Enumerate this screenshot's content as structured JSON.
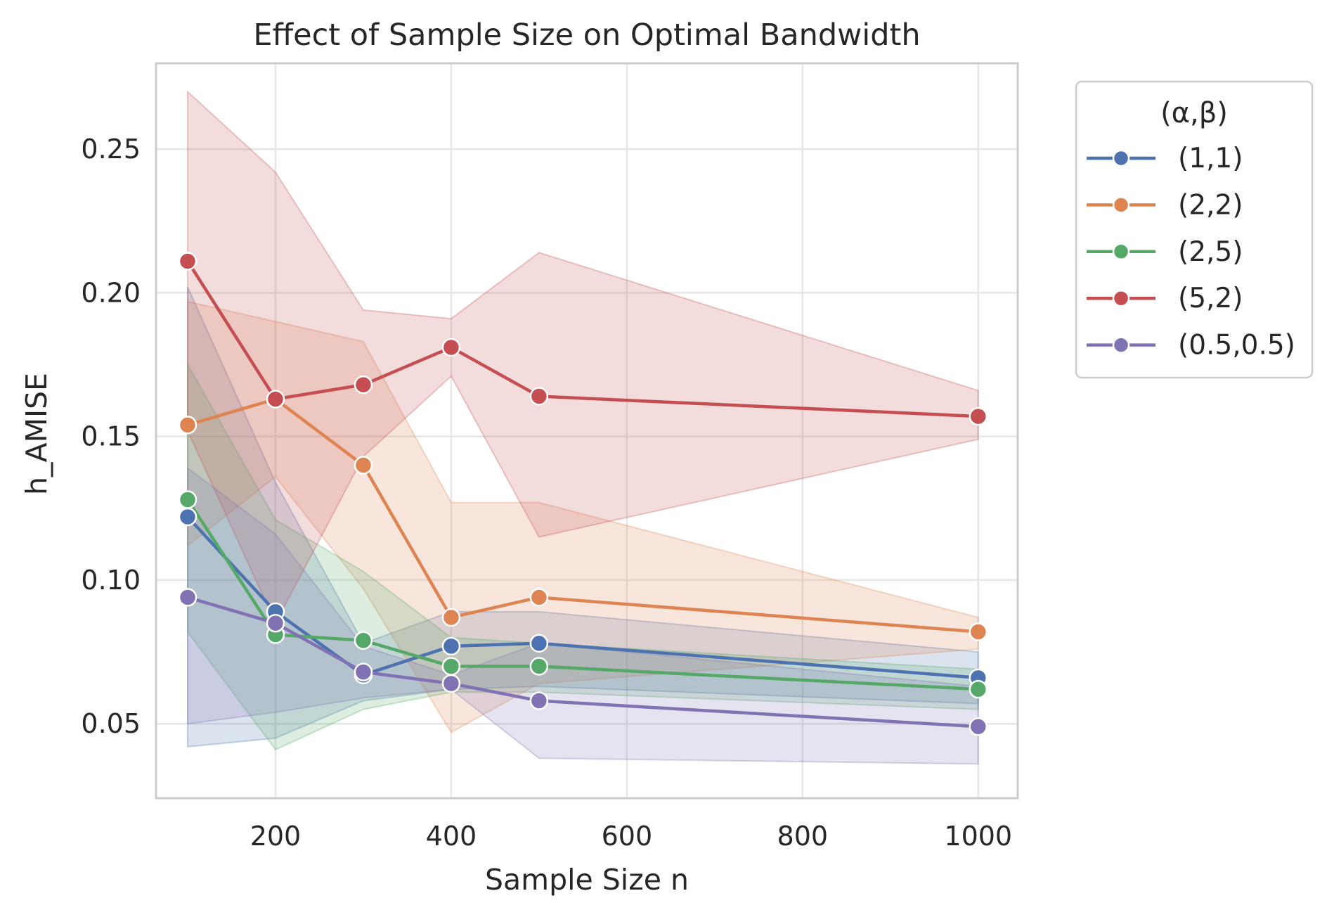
{
  "chart_data": {
    "type": "line",
    "title": "Effect of Sample Size on Optimal Bandwidth",
    "xlabel": "Sample Size n",
    "ylabel": "h_AMISE",
    "x": [
      100,
      200,
      300,
      400,
      500,
      1000
    ],
    "xlim": [
      64,
      1045
    ],
    "ylim": [
      0.0241,
      0.2799
    ],
    "xticks": [
      200,
      400,
      600,
      800,
      1000
    ],
    "xtick_labels": [
      "200",
      "400",
      "600",
      "800",
      "1000"
    ],
    "yticks": [
      0.05,
      0.1,
      0.15,
      0.2,
      0.25
    ],
    "ytick_labels": [
      "0.05",
      "0.10",
      "0.15",
      "0.20",
      "0.25"
    ],
    "grid": true,
    "legend": {
      "title": "(α,β)",
      "placement": "outside upper right"
    },
    "series": [
      {
        "name": "(1,1)",
        "color": "#4c72b0",
        "values": [
          0.122,
          0.089,
          0.067,
          0.077,
          0.078,
          0.066
        ],
        "ci_low": [
          0.042,
          0.045,
          0.058,
          0.062,
          0.063,
          0.057
        ],
        "ci_high": [
          0.202,
          0.134,
          0.078,
          0.089,
          0.089,
          0.075
        ]
      },
      {
        "name": "(2,2)",
        "color": "#dd8452",
        "values": [
          0.154,
          0.163,
          0.14,
          0.087,
          0.094,
          0.082
        ],
        "ci_low": [
          0.112,
          0.136,
          0.097,
          0.047,
          0.064,
          0.076
        ],
        "ci_high": [
          0.197,
          0.19,
          0.183,
          0.127,
          0.127,
          0.087
        ]
      },
      {
        "name": "(2,5)",
        "color": "#55a868",
        "values": [
          0.128,
          0.081,
          0.079,
          0.07,
          0.07,
          0.062
        ],
        "ci_low": [
          0.082,
          0.041,
          0.055,
          0.061,
          0.061,
          0.055
        ],
        "ci_high": [
          0.175,
          0.121,
          0.103,
          0.08,
          0.078,
          0.069
        ]
      },
      {
        "name": "(5,2)",
        "color": "#c44e52",
        "values": [
          0.211,
          0.163,
          0.168,
          0.181,
          0.164,
          0.157
        ],
        "ci_low": [
          0.152,
          0.085,
          0.143,
          0.171,
          0.115,
          0.149
        ],
        "ci_high": [
          0.27,
          0.242,
          0.194,
          0.191,
          0.214,
          0.166
        ]
      },
      {
        "name": "(0.5,0.5)",
        "color": "#8172b3",
        "values": [
          0.094,
          0.085,
          0.068,
          0.064,
          0.058,
          0.049
        ],
        "ci_low": [
          0.05,
          0.054,
          0.059,
          0.062,
          0.038,
          0.036
        ],
        "ci_high": [
          0.139,
          0.116,
          0.077,
          0.067,
          0.078,
          0.063
        ]
      }
    ]
  }
}
